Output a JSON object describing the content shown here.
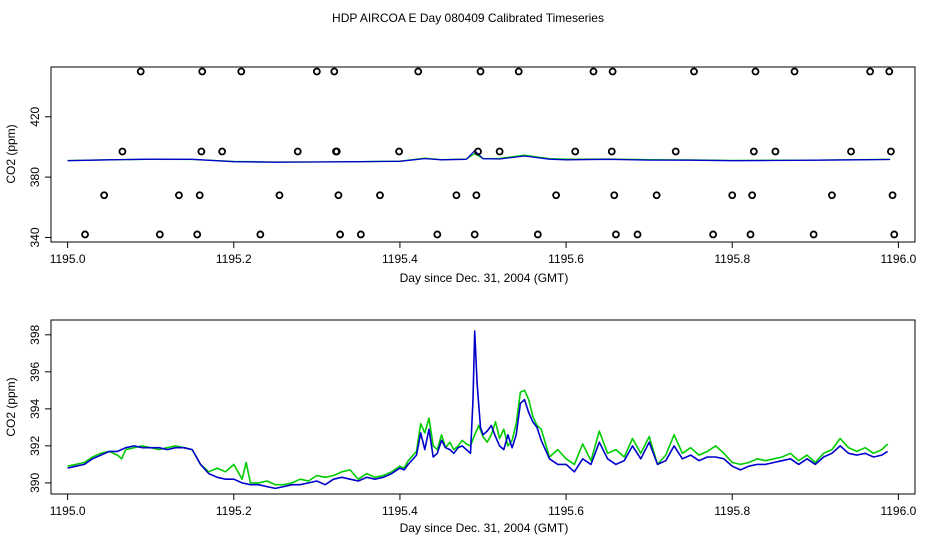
{
  "title": "HDP AIRCOA E  Day 080409  Calibrated Timeseries",
  "chart_data": [
    {
      "type": "scatter",
      "xlabel": "Day since Dec. 31, 2004 (GMT)",
      "ylabel": "CO2 (ppm)",
      "xlim": [
        1194.98,
        1196.02
      ],
      "ylim": [
        337,
        453
      ],
      "xticks": [
        1195.0,
        1195.2,
        1195.4,
        1195.6,
        1195.8,
        1196.0
      ],
      "xtick_labels": [
        "1195.0",
        "1195.2",
        "1195.4",
        "1195.6",
        "1195.8",
        "1196.0"
      ],
      "yticks": [
        340,
        380,
        420
      ],
      "ytick_labels": [
        "340",
        "380",
        "420"
      ],
      "grid": false,
      "marker_series": {
        "name": "",
        "marker": "open-circle",
        "points": [
          [
            1195.021,
            342
          ],
          [
            1195.044,
            368
          ],
          [
            1195.066,
            397
          ],
          [
            1195.088,
            450
          ],
          [
            1195.111,
            342
          ],
          [
            1195.134,
            368
          ],
          [
            1195.156,
            342
          ],
          [
            1195.159,
            368
          ],
          [
            1195.161,
            397
          ],
          [
            1195.162,
            450
          ],
          [
            1195.186,
            397
          ],
          [
            1195.209,
            450
          ],
          [
            1195.232,
            342
          ],
          [
            1195.255,
            368
          ],
          [
            1195.277,
            397
          ],
          [
            1195.3,
            450
          ],
          [
            1195.321,
            450
          ],
          [
            1195.323,
            397
          ],
          [
            1195.324,
            397
          ],
          [
            1195.326,
            368
          ],
          [
            1195.328,
            342
          ],
          [
            1195.353,
            342
          ],
          [
            1195.376,
            368
          ],
          [
            1195.399,
            397
          ],
          [
            1195.422,
            450
          ],
          [
            1195.445,
            342
          ],
          [
            1195.468,
            368
          ],
          [
            1195.49,
            342
          ],
          [
            1195.492,
            368
          ],
          [
            1195.494,
            397
          ],
          [
            1195.497,
            450
          ],
          [
            1195.52,
            397
          ],
          [
            1195.543,
            450
          ],
          [
            1195.566,
            342
          ],
          [
            1195.588,
            368
          ],
          [
            1195.611,
            397
          ],
          [
            1195.633,
            450
          ],
          [
            1195.655,
            397
          ],
          [
            1195.656,
            450
          ],
          [
            1195.658,
            368
          ],
          [
            1195.66,
            342
          ],
          [
            1195.686,
            342
          ],
          [
            1195.709,
            368
          ],
          [
            1195.732,
            397
          ],
          [
            1195.754,
            450
          ],
          [
            1195.777,
            342
          ],
          [
            1195.8,
            368
          ],
          [
            1195.822,
            342
          ],
          [
            1195.824,
            368
          ],
          [
            1195.826,
            397
          ],
          [
            1195.828,
            450
          ],
          [
            1195.852,
            397
          ],
          [
            1195.875,
            450
          ],
          [
            1195.898,
            342
          ],
          [
            1195.92,
            368
          ],
          [
            1195.943,
            397
          ],
          [
            1195.966,
            450
          ],
          [
            1195.989,
            450
          ],
          [
            1195.991,
            397
          ],
          [
            1195.993,
            368
          ],
          [
            1195.995,
            342
          ]
        ]
      },
      "series": [
        {
          "name": "",
          "color": "#00cc00",
          "x": [
            1195.0,
            1195.05,
            1195.1,
            1195.15,
            1195.2,
            1195.25,
            1195.3,
            1195.35,
            1195.4,
            1195.43,
            1195.45,
            1195.48,
            1195.49,
            1195.5,
            1195.52,
            1195.55,
            1195.58,
            1195.6,
            1195.65,
            1195.7,
            1195.75,
            1195.8,
            1195.85,
            1195.9,
            1195.95,
            1195.99
          ],
          "y": [
            391.0,
            391.5,
            391.8,
            391.7,
            390.4,
            390.0,
            390.1,
            390.3,
            390.6,
            392.6,
            391.6,
            392.0,
            395.5,
            392.3,
            392.4,
            394.6,
            392.2,
            391.9,
            392.0,
            391.6,
            391.4,
            391.1,
            391.2,
            391.3,
            391.6,
            391.8
          ]
        },
        {
          "name": "",
          "color": "#0000cc",
          "x": [
            1195.0,
            1195.05,
            1195.1,
            1195.15,
            1195.2,
            1195.25,
            1195.3,
            1195.35,
            1195.4,
            1195.43,
            1195.45,
            1195.48,
            1195.49,
            1195.5,
            1195.52,
            1195.55,
            1195.58,
            1195.6,
            1195.65,
            1195.7,
            1195.75,
            1195.8,
            1195.85,
            1195.9,
            1195.95,
            1195.99
          ],
          "y": [
            390.9,
            391.5,
            391.9,
            391.8,
            390.2,
            389.9,
            390.0,
            390.2,
            390.5,
            392.3,
            391.5,
            391.8,
            397.5,
            392.2,
            392.0,
            394.0,
            391.9,
            391.5,
            391.8,
            391.3,
            391.2,
            390.9,
            391.0,
            391.2,
            391.5,
            391.7
          ]
        }
      ]
    },
    {
      "type": "line",
      "xlabel": "Day since Dec. 31, 2004 (GMT)",
      "ylabel": "CO2 (ppm)",
      "xlim": [
        1194.98,
        1196.02
      ],
      "ylim": [
        389.4,
        398.8
      ],
      "xticks": [
        1195.0,
        1195.2,
        1195.4,
        1195.6,
        1195.8,
        1196.0
      ],
      "xtick_labels": [
        "1195.0",
        "1195.2",
        "1195.4",
        "1195.6",
        "1195.8",
        "1196.0"
      ],
      "yticks": [
        390,
        392,
        394,
        396,
        398
      ],
      "ytick_labels": [
        "390",
        "392",
        "394",
        "396",
        "398"
      ],
      "grid": false,
      "series": [
        {
          "name": "",
          "color": "#00cc00",
          "x": [
            1195.0,
            1195.01,
            1195.02,
            1195.03,
            1195.04,
            1195.05,
            1195.06,
            1195.065,
            1195.07,
            1195.08,
            1195.09,
            1195.1,
            1195.11,
            1195.12,
            1195.13,
            1195.14,
            1195.15,
            1195.155,
            1195.16,
            1195.17,
            1195.18,
            1195.19,
            1195.2,
            1195.21,
            1195.215,
            1195.22,
            1195.23,
            1195.24,
            1195.25,
            1195.26,
            1195.27,
            1195.28,
            1195.29,
            1195.3,
            1195.31,
            1195.32,
            1195.33,
            1195.34,
            1195.35,
            1195.36,
            1195.37,
            1195.38,
            1195.39,
            1195.4,
            1195.405,
            1195.41,
            1195.42,
            1195.425,
            1195.43,
            1195.435,
            1195.44,
            1195.445,
            1195.45,
            1195.455,
            1195.46,
            1195.465,
            1195.47,
            1195.475,
            1195.48,
            1195.485,
            1195.49,
            1195.495,
            1195.5,
            1195.505,
            1195.51,
            1195.515,
            1195.52,
            1195.525,
            1195.53,
            1195.535,
            1195.54,
            1195.545,
            1195.55,
            1195.555,
            1195.56,
            1195.565,
            1195.57,
            1195.58,
            1195.59,
            1195.6,
            1195.61,
            1195.62,
            1195.63,
            1195.64,
            1195.65,
            1195.66,
            1195.67,
            1195.68,
            1195.69,
            1195.7,
            1195.71,
            1195.72,
            1195.73,
            1195.74,
            1195.75,
            1195.76,
            1195.77,
            1195.78,
            1195.79,
            1195.8,
            1195.81,
            1195.82,
            1195.83,
            1195.84,
            1195.85,
            1195.86,
            1195.87,
            1195.88,
            1195.89,
            1195.9,
            1195.91,
            1195.92,
            1195.93,
            1195.94,
            1195.95,
            1195.96,
            1195.97,
            1195.98,
            1195.987
          ],
          "y": [
            390.9,
            391.0,
            391.1,
            391.4,
            391.6,
            391.7,
            391.5,
            391.3,
            391.8,
            391.9,
            392.0,
            391.9,
            391.8,
            391.9,
            392.0,
            391.9,
            391.8,
            391.4,
            391.0,
            390.6,
            390.8,
            390.6,
            391.0,
            390.2,
            391.1,
            390.0,
            390.0,
            390.1,
            389.9,
            389.9,
            390.0,
            390.2,
            390.1,
            390.4,
            390.3,
            390.4,
            390.6,
            390.7,
            390.2,
            390.5,
            390.3,
            390.4,
            390.6,
            390.9,
            390.8,
            391.2,
            391.7,
            393.2,
            392.7,
            393.5,
            392.0,
            391.8,
            392.6,
            391.9,
            392.2,
            391.8,
            392.0,
            392.3,
            392.1,
            392.0,
            392.6,
            393.1,
            392.5,
            392.2,
            392.6,
            393.3,
            392.4,
            392.9,
            392.0,
            392.3,
            393.2,
            394.9,
            395.0,
            394.5,
            393.6,
            393.1,
            392.9,
            391.4,
            391.8,
            391.3,
            391.0,
            392.1,
            391.2,
            392.8,
            391.6,
            391.8,
            391.4,
            392.4,
            391.6,
            392.5,
            391.0,
            391.5,
            392.6,
            391.6,
            391.9,
            391.5,
            391.7,
            392.0,
            391.6,
            391.1,
            391.0,
            391.1,
            391.3,
            391.2,
            391.3,
            391.4,
            391.6,
            391.2,
            391.5,
            391.1,
            391.6,
            391.8,
            392.4,
            391.9,
            391.7,
            391.9,
            391.6,
            391.8,
            392.1
          ]
        },
        {
          "name": "",
          "color": "#0000cc",
          "x": [
            1195.0,
            1195.01,
            1195.02,
            1195.03,
            1195.04,
            1195.05,
            1195.06,
            1195.07,
            1195.08,
            1195.09,
            1195.1,
            1195.11,
            1195.12,
            1195.13,
            1195.14,
            1195.15,
            1195.155,
            1195.16,
            1195.17,
            1195.18,
            1195.19,
            1195.2,
            1195.21,
            1195.22,
            1195.23,
            1195.24,
            1195.25,
            1195.26,
            1195.27,
            1195.28,
            1195.29,
            1195.3,
            1195.31,
            1195.32,
            1195.33,
            1195.34,
            1195.35,
            1195.36,
            1195.37,
            1195.38,
            1195.39,
            1195.4,
            1195.405,
            1195.41,
            1195.42,
            1195.425,
            1195.43,
            1195.435,
            1195.44,
            1195.445,
            1195.45,
            1195.455,
            1195.46,
            1195.465,
            1195.47,
            1195.475,
            1195.48,
            1195.485,
            1195.488,
            1195.49,
            1195.493,
            1195.497,
            1195.5,
            1195.505,
            1195.51,
            1195.515,
            1195.52,
            1195.525,
            1195.53,
            1195.535,
            1195.54,
            1195.545,
            1195.55,
            1195.555,
            1195.56,
            1195.565,
            1195.57,
            1195.58,
            1195.59,
            1195.6,
            1195.61,
            1195.62,
            1195.63,
            1195.64,
            1195.65,
            1195.66,
            1195.67,
            1195.68,
            1195.69,
            1195.7,
            1195.71,
            1195.72,
            1195.73,
            1195.74,
            1195.75,
            1195.76,
            1195.77,
            1195.78,
            1195.79,
            1195.8,
            1195.81,
            1195.82,
            1195.83,
            1195.84,
            1195.85,
            1195.86,
            1195.87,
            1195.88,
            1195.89,
            1195.9,
            1195.91,
            1195.92,
            1195.93,
            1195.94,
            1195.95,
            1195.96,
            1195.97,
            1195.98,
            1195.987
          ],
          "y": [
            390.8,
            390.9,
            391.0,
            391.3,
            391.5,
            391.7,
            391.7,
            391.9,
            392.0,
            391.9,
            391.9,
            391.9,
            391.8,
            391.9,
            391.9,
            391.8,
            391.4,
            391.0,
            390.5,
            390.3,
            390.2,
            390.2,
            390.0,
            389.9,
            389.9,
            389.8,
            389.7,
            389.8,
            389.9,
            389.9,
            390.0,
            390.1,
            389.9,
            390.2,
            390.3,
            390.2,
            390.1,
            390.3,
            390.2,
            390.3,
            390.5,
            390.8,
            390.7,
            391.0,
            391.5,
            392.7,
            391.8,
            392.9,
            391.4,
            391.6,
            392.3,
            391.9,
            391.8,
            391.6,
            391.9,
            392.0,
            391.8,
            391.6,
            394.5,
            398.2,
            395.3,
            393.0,
            392.6,
            392.8,
            393.1,
            392.5,
            392.0,
            391.8,
            392.6,
            391.9,
            392.6,
            394.3,
            394.5,
            393.8,
            393.3,
            393.0,
            392.3,
            391.3,
            391.0,
            391.0,
            390.6,
            391.3,
            391.0,
            392.2,
            391.3,
            391.0,
            391.2,
            392.0,
            391.3,
            392.2,
            391.0,
            391.2,
            392.0,
            391.3,
            391.5,
            391.2,
            391.4,
            391.4,
            391.3,
            390.9,
            390.7,
            390.9,
            391.0,
            391.0,
            391.1,
            391.2,
            391.3,
            391.0,
            391.3,
            391.0,
            391.4,
            391.6,
            392.0,
            391.6,
            391.5,
            391.6,
            391.4,
            391.5,
            391.7
          ]
        }
      ]
    }
  ]
}
